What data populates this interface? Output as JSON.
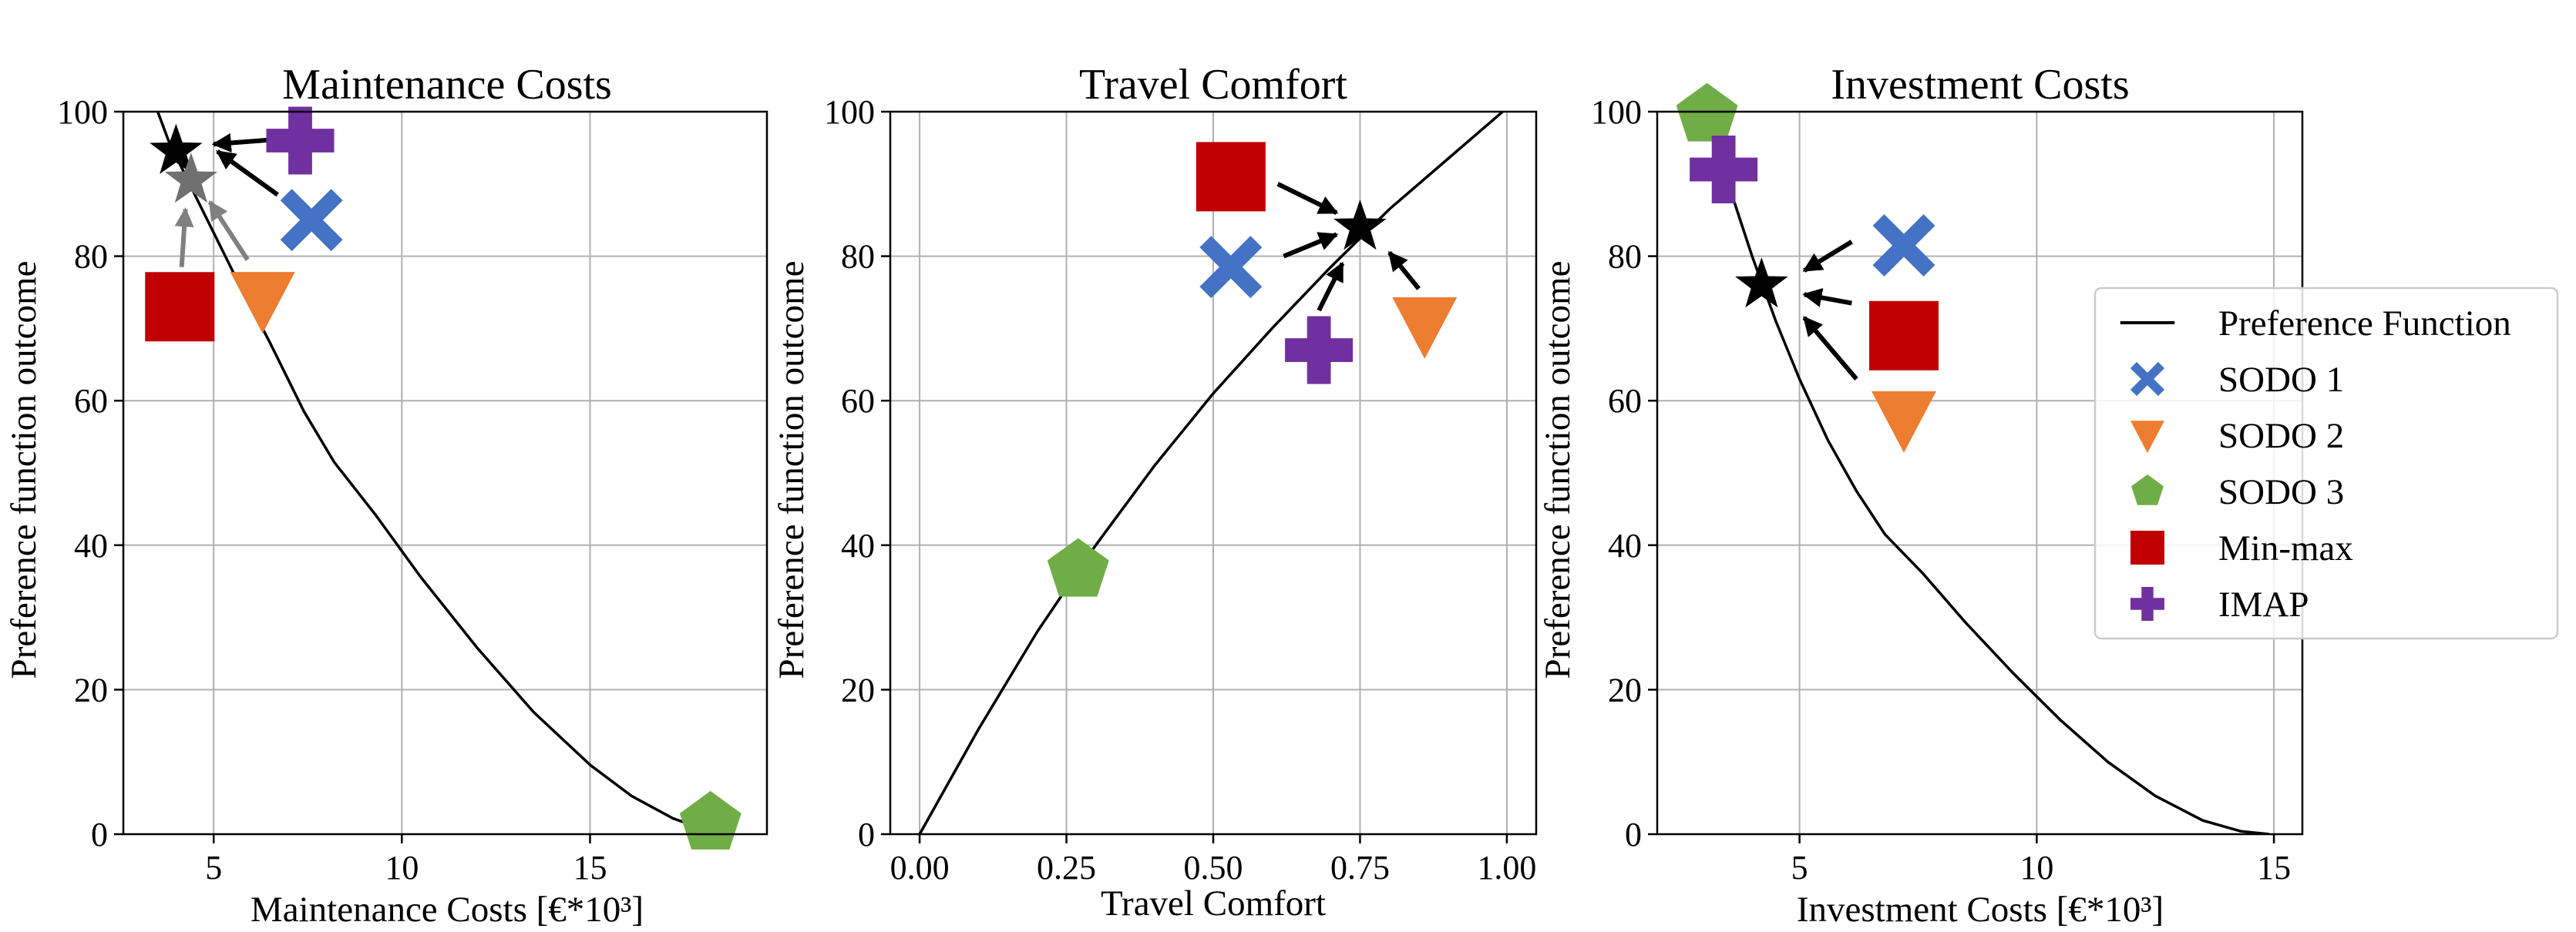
{
  "chart_data": [
    {
      "type": "line",
      "title": "Maintenance Costs",
      "xlabel": "Maintenance Costs [€*10³]",
      "ylabel": "Preference function outcome",
      "xlim": [
        2.6,
        19.7
      ],
      "ylim": [
        0,
        100
      ],
      "xticks": [
        5,
        10,
        15
      ],
      "xtick_labels": [
        "5",
        "10",
        "15"
      ],
      "yticks": [
        0,
        20,
        40,
        60,
        80,
        100
      ],
      "ytick_labels": [
        "0",
        "20",
        "40",
        "60",
        "80",
        "100"
      ],
      "grid": true,
      "preference_curve": [
        [
          3.3,
          103
        ],
        [
          3.8,
          96
        ],
        [
          4.5,
          88.5
        ],
        [
          5.5,
          78
        ],
        [
          6.5,
          68
        ],
        [
          7.4,
          58.5
        ],
        [
          8.2,
          51.5
        ],
        [
          9.3,
          44.2
        ],
        [
          10.5,
          35.6
        ],
        [
          12,
          25.8
        ],
        [
          13.5,
          16.9
        ],
        [
          15,
          9.6
        ],
        [
          16.1,
          5.3
        ],
        [
          17.2,
          2.2
        ],
        [
          18,
          0.7
        ],
        [
          18.6,
          0
        ]
      ],
      "series": [
        {
          "name": "SODO 1",
          "marker": "x",
          "x": [
            7.6
          ],
          "y": [
            85
          ]
        },
        {
          "name": "SODO 2",
          "marker": "triangle",
          "x": [
            6.3
          ],
          "y": [
            74
          ]
        },
        {
          "name": "SODO 3",
          "marker": "pentagon",
          "x": [
            18.2
          ],
          "y": [
            1.5
          ]
        },
        {
          "name": "Min-max",
          "marker": "square",
          "x": [
            4.1
          ],
          "y": [
            73
          ]
        },
        {
          "name": "IMAP",
          "marker": "plus",
          "x": [
            7.3
          ],
          "y": [
            96
          ]
        }
      ],
      "stars": [
        {
          "x": [
            4.0
          ],
          "y": [
            94.5
          ],
          "color": "#000000"
        },
        {
          "x": [
            4.4
          ],
          "y": [
            90.5
          ],
          "color": "#707070"
        }
      ],
      "arrows": [
        {
          "from": [
            7.0,
            96.3
          ],
          "to": [
            5.0,
            95.5
          ],
          "color": "#000000"
        },
        {
          "from": [
            6.7,
            88.5
          ],
          "to": [
            5.1,
            94.5
          ],
          "color": "#000000"
        },
        {
          "from": [
            4.15,
            78.5
          ],
          "to": [
            4.25,
            86.5
          ],
          "color": "#808080"
        },
        {
          "from": [
            5.9,
            79.5
          ],
          "to": [
            4.9,
            87.5
          ],
          "color": "#808080"
        }
      ]
    },
    {
      "type": "line",
      "title": "Travel Comfort",
      "xlabel": "Travel Comfort",
      "ylabel": "Preference function outcome",
      "xlim": [
        -0.05,
        1.05
      ],
      "ylim": [
        0,
        100
      ],
      "xticks": [
        0,
        0.25,
        0.5,
        0.75,
        1.0
      ],
      "xtick_labels": [
        "0.00",
        "0.25",
        "0.50",
        "0.75",
        "1.00"
      ],
      "yticks": [
        0,
        20,
        40,
        60,
        80,
        100
      ],
      "ytick_labels": [
        "0",
        "20",
        "40",
        "60",
        "80",
        "100"
      ],
      "grid": true,
      "preference_curve": [
        [
          0,
          0
        ],
        [
          0.1,
          14.5
        ],
        [
          0.2,
          28
        ],
        [
          0.3,
          40
        ],
        [
          0.4,
          51
        ],
        [
          0.5,
          61
        ],
        [
          0.6,
          70
        ],
        [
          0.7,
          78.5
        ],
        [
          0.75,
          82.5
        ],
        [
          0.8,
          86.5
        ],
        [
          0.9,
          93.5
        ],
        [
          1.0,
          100.5
        ]
      ],
      "series": [
        {
          "name": "SODO 1",
          "marker": "x",
          "x": [
            0.53
          ],
          "y": [
            78.5
          ]
        },
        {
          "name": "SODO 2",
          "marker": "triangle",
          "x": [
            0.86
          ],
          "y": [
            70.5
          ]
        },
        {
          "name": "SODO 3",
          "marker": "pentagon",
          "x": [
            0.27
          ],
          "y": [
            36.5
          ]
        },
        {
          "name": "Min-max",
          "marker": "square",
          "x": [
            0.53
          ],
          "y": [
            91
          ]
        },
        {
          "name": "IMAP",
          "marker": "plus",
          "x": [
            0.68
          ],
          "y": [
            67
          ]
        }
      ],
      "stars": [
        {
          "x": [
            0.75
          ],
          "y": [
            84
          ],
          "color": "#000000"
        }
      ],
      "arrows": [
        {
          "from": [
            0.61,
            90
          ],
          "to": [
            0.71,
            86
          ],
          "color": "#000000"
        },
        {
          "from": [
            0.62,
            80
          ],
          "to": [
            0.71,
            83
          ],
          "color": "#000000"
        },
        {
          "from": [
            0.68,
            72.5
          ],
          "to": [
            0.72,
            79
          ],
          "color": "#000000"
        },
        {
          "from": [
            0.85,
            75.5
          ],
          "to": [
            0.8,
            80.5
          ],
          "color": "#000000"
        }
      ]
    },
    {
      "type": "line",
      "title": "Investment Costs",
      "xlabel": "Investment Costs [€*10³]",
      "ylabel": "Preference function outcome",
      "xlim": [
        2.0,
        15.6
      ],
      "ylim": [
        0,
        100
      ],
      "xticks": [
        5,
        10,
        15
      ],
      "xtick_labels": [
        "5",
        "10",
        "15"
      ],
      "yticks": [
        0,
        20,
        40,
        60,
        80,
        100
      ],
      "ytick_labels": [
        "0",
        "20",
        "40",
        "60",
        "80",
        "100"
      ],
      "grid": true,
      "preference_curve": [
        [
          2.95,
          103
        ],
        [
          3.5,
          90
        ],
        [
          4.0,
          80
        ],
        [
          4.5,
          71
        ],
        [
          5.0,
          63
        ],
        [
          5.6,
          54.5
        ],
        [
          6.2,
          47.5
        ],
        [
          6.8,
          41.5
        ],
        [
          7.6,
          36.1
        ],
        [
          8.5,
          29.3
        ],
        [
          9.5,
          22.3
        ],
        [
          10.5,
          15.8
        ],
        [
          11.5,
          10
        ],
        [
          12.5,
          5.3
        ],
        [
          13.5,
          1.9
        ],
        [
          14.3,
          0.4
        ],
        [
          14.9,
          0
        ]
      ],
      "series": [
        {
          "name": "SODO 1",
          "marker": "x",
          "x": [
            7.2
          ],
          "y": [
            81.5
          ]
        },
        {
          "name": "SODO 2",
          "marker": "triangle",
          "x": [
            7.2
          ],
          "y": [
            57.5
          ]
        },
        {
          "name": "SODO 3",
          "marker": "pentagon",
          "x": [
            3.05
          ],
          "y": [
            99.5
          ]
        },
        {
          "name": "Min-max",
          "marker": "square",
          "x": [
            7.2
          ],
          "y": [
            69
          ]
        },
        {
          "name": "IMAP",
          "marker": "plus",
          "x": [
            3.4
          ],
          "y": [
            92
          ]
        }
      ],
      "stars": [
        {
          "x": [
            4.2
          ],
          "y": [
            76
          ],
          "color": "#000000"
        }
      ],
      "arrows": [
        {
          "from": [
            6.1,
            82
          ],
          "to": [
            5.1,
            78
          ],
          "color": "#000000"
        },
        {
          "from": [
            6.1,
            73.5
          ],
          "to": [
            5.1,
            74.7
          ],
          "color": "#000000"
        },
        {
          "from": [
            6.2,
            63
          ],
          "to": [
            5.1,
            71.5
          ],
          "color": "#000000"
        }
      ]
    }
  ],
  "legend": {
    "placement": "right",
    "entries": [
      {
        "label": "Preference Function",
        "marker": "line",
        "color": "#000000"
      },
      {
        "label": "SODO 1",
        "marker": "x",
        "color": "#4472C4"
      },
      {
        "label": "SODO 2",
        "marker": "triangle",
        "color": "#ED7D31"
      },
      {
        "label": "SODO 3",
        "marker": "pentagon",
        "color": "#70AD47"
      },
      {
        "label": "Min-max",
        "marker": "square",
        "color": "#C00000"
      },
      {
        "label": "IMAP",
        "marker": "plus",
        "color": "#7030A0"
      }
    ]
  },
  "colors": {
    "SODO 1": "#4472C4",
    "SODO 2": "#ED7D31",
    "SODO 3": "#70AD47",
    "Min-max": "#C00000",
    "IMAP": "#7030A0",
    "curve": "#000000",
    "grid": "#b0b0b0"
  }
}
